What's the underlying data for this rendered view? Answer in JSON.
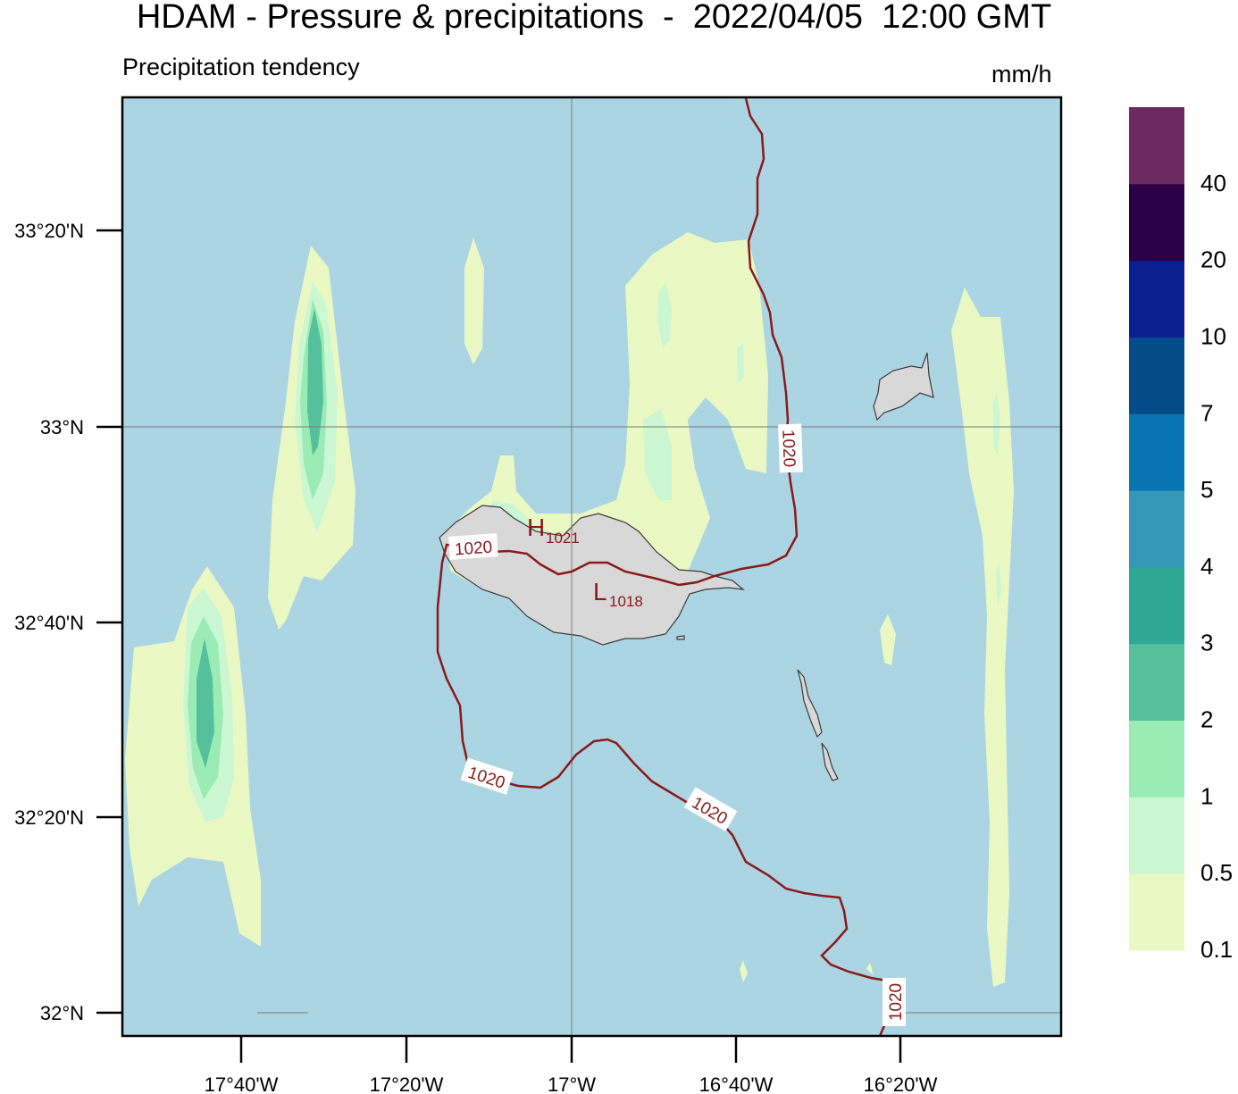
{
  "title": "HDAM - Pressure & precipitations  -  2022/04/05  12:00 GMT",
  "subtitle": "Precipitation tendency",
  "unit": "mm/h",
  "colors": {
    "sea": "#acd5e3",
    "land": "#d8d8d8",
    "isobar": "#8a1a1a",
    "grid": "#7a7a7a"
  },
  "latitude_labels": [
    "33°20'N",
    "33°N",
    "32°40'N",
    "32°20'N",
    "32°N"
  ],
  "longitude_labels": [
    "17°40'W",
    "17°20'W",
    "17°W",
    "16°40'W",
    "16°20'W"
  ],
  "isobar_labels": [
    "1020",
    "1020",
    "1020",
    "1020",
    "1020"
  ],
  "pressure_centers": [
    {
      "type": "H",
      "value": "1021"
    },
    {
      "type": "L",
      "value": "1018"
    }
  ],
  "legend": {
    "bins": [
      {
        "label": "0.1",
        "color": "#eaf8c3"
      },
      {
        "label": "0.5",
        "color": "#ccf7d3"
      },
      {
        "label": "1",
        "color": "#9aecb4"
      },
      {
        "label": "2",
        "color": "#55c19c"
      },
      {
        "label": "3",
        "color": "#2fa797"
      },
      {
        "label": "4",
        "color": "#3598b8"
      },
      {
        "label": "5",
        "color": "#0875b2"
      },
      {
        "label": "7",
        "color": "#044c89"
      },
      {
        "label": "10",
        "color": "#0c1f8f"
      },
      {
        "label": "20",
        "color": "#2a0147"
      },
      {
        "label": "40",
        "color": "#6b2a5f"
      }
    ]
  }
}
